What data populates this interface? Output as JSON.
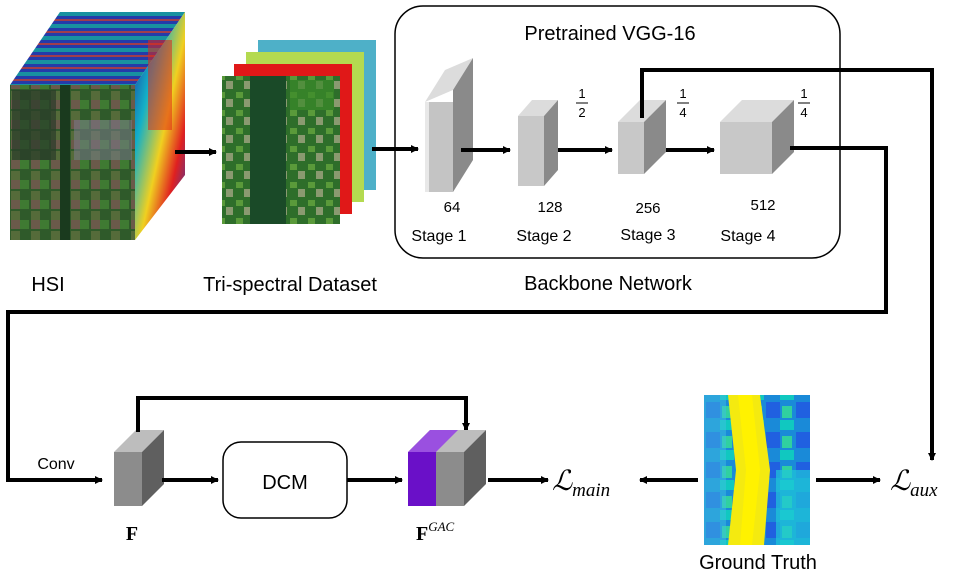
{
  "inputs": {
    "hsi_label": "HSI",
    "tri_label": "Tri-spectral Dataset"
  },
  "backbone": {
    "title": "Pretrained VGG-16",
    "caption": "Backbone Network",
    "stages": [
      {
        "name": "Stage 1",
        "channels": "64",
        "scale": ""
      },
      {
        "name": "Stage 2",
        "channels": "128",
        "scale": "1/2"
      },
      {
        "name": "Stage 3",
        "channels": "256",
        "scale": "1/4"
      },
      {
        "name": "Stage 4",
        "channels": "512",
        "scale": "1/4"
      }
    ]
  },
  "decoder": {
    "conv_label": "Conv",
    "dcm_label": "DCM",
    "feature_label": "F",
    "gac_label": "F",
    "gac_superscript": "GAC"
  },
  "losses": {
    "main_symbol": "ℒ",
    "main_sub": "main",
    "aux_symbol": "ℒ",
    "aux_sub": "aux"
  },
  "ground_truth": {
    "label": "Ground Truth"
  },
  "colors": {
    "stage_face": "#c8c8c8",
    "stage_side": "#8a8a8a",
    "feature_front": "#8c8c8c",
    "feature_side": "#5a5a5a",
    "gac_purple": "#6a10c8",
    "arrow": "#000000"
  }
}
